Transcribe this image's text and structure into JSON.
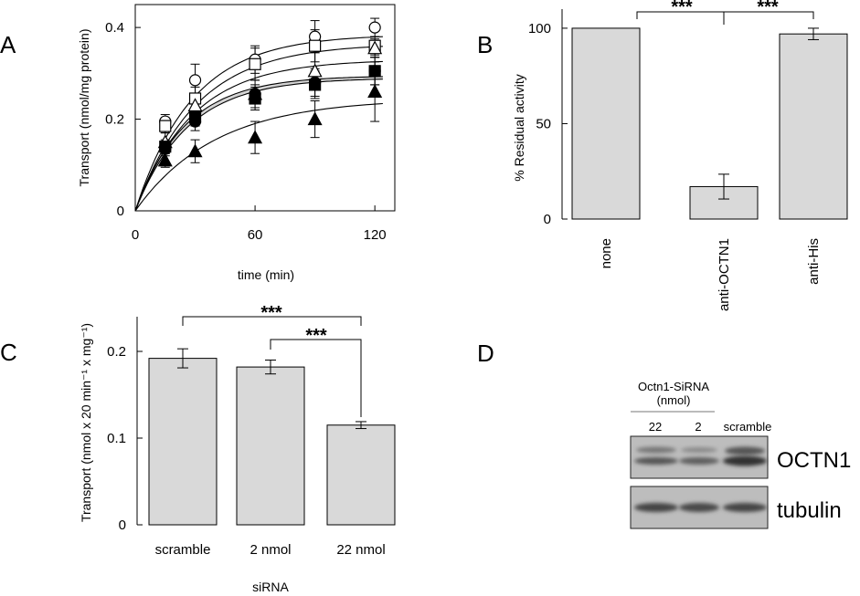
{
  "chart_data": [
    {
      "panel": "A",
      "type": "scatter",
      "xlabel": "time (min)",
      "ylabel": "Transport (nmol/mg protein)",
      "xlim": [
        0,
        130
      ],
      "ylim": [
        0,
        0.45
      ],
      "xticks": [
        "0",
        "60",
        "120"
      ],
      "yticks": [
        "0",
        "0.2",
        "0.4"
      ],
      "fit": "first-order",
      "x": [
        15,
        30,
        60,
        90,
        120
      ],
      "series": [
        {
          "name": "open circle",
          "marker": "circle-open",
          "values": [
            0.195,
            0.285,
            0.33,
            0.38,
            0.4
          ],
          "errors": [
            0.015,
            0.035,
            0.03,
            0.035,
            0.02
          ],
          "curve_max": 0.385,
          "curve_k": 0.035
        },
        {
          "name": "open square",
          "marker": "square-open",
          "values": [
            0.185,
            0.245,
            0.32,
            0.36,
            0.36
          ],
          "errors": [
            0.015,
            0.025,
            0.035,
            0.035,
            0.02
          ],
          "curve_max": 0.365,
          "curve_k": 0.033
        },
        {
          "name": "open triangle",
          "marker": "triangle-open",
          "values": [
            0.15,
            0.23,
            0.255,
            0.305,
            0.355
          ],
          "errors": [
            0.02,
            0.02,
            0.03,
            0.04,
            0.02
          ],
          "curve_max": 0.33,
          "curve_k": 0.035
        },
        {
          "name": "filled circle",
          "marker": "circle-filled",
          "values": [
            0.135,
            0.195,
            0.255,
            0.28,
            0.305
          ],
          "errors": [
            0.015,
            0.02,
            0.02,
            0.03,
            0.03
          ],
          "curve_max": 0.295,
          "curve_k": 0.04
        },
        {
          "name": "filled square",
          "marker": "square-filled",
          "values": [
            0.14,
            0.205,
            0.245,
            0.275,
            0.305
          ],
          "errors": [
            0.015,
            0.02,
            0.025,
            0.03,
            0.03
          ],
          "curve_max": 0.29,
          "curve_k": 0.038
        },
        {
          "name": "filled triangle",
          "marker": "triangle-filled",
          "values": [
            0.11,
            0.13,
            0.16,
            0.2,
            0.26
          ],
          "errors": [
            0.015,
            0.025,
            0.035,
            0.04,
            0.065
          ],
          "curve_max": 0.245,
          "curve_k": 0.025
        }
      ]
    },
    {
      "panel": "B",
      "type": "bar",
      "ylabel": "% Residual activity",
      "ylim": [
        0,
        110
      ],
      "yticks": [
        "0",
        "50",
        "100"
      ],
      "categories": [
        "none",
        "anti-OCTN1",
        "anti-His"
      ],
      "values": [
        100,
        17,
        97
      ],
      "errors": [
        0,
        6.5,
        3
      ],
      "significance": [
        "***",
        "***"
      ]
    },
    {
      "panel": "C",
      "type": "bar",
      "xlabel": "siRNA",
      "ylabel": "Transport (nmol x 20 min⁻¹ x mg⁻¹)",
      "ylim": [
        0,
        0.24
      ],
      "yticks": [
        "0",
        "0.1",
        "0.2"
      ],
      "categories": [
        "scramble",
        "2 nmol",
        "22 nmol"
      ],
      "values": [
        0.192,
        0.182,
        0.115
      ],
      "errors": [
        0.011,
        0.008,
        0.004
      ],
      "significance": [
        "***",
        "***"
      ]
    }
  ],
  "panel_d": {
    "letter": "D",
    "header": "Octn1-SiRNA",
    "unit": "(nmol)",
    "lanes": [
      "22",
      "2",
      "scramble"
    ],
    "blots": [
      "OCTN1",
      "tubulin"
    ]
  }
}
